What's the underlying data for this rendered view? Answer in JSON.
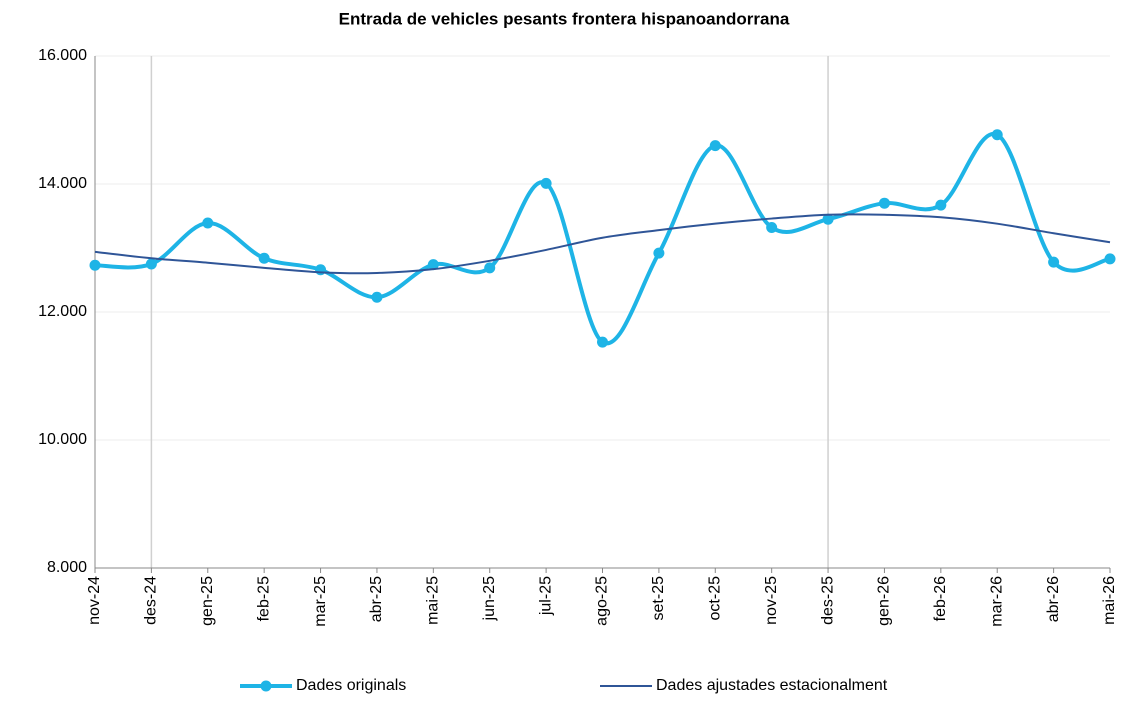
{
  "chart_data": {
    "type": "line",
    "title": "Entrada de vehicles pesants frontera hispanoandorrana",
    "categories": [
      "nov-24",
      "des-24",
      "gen-25",
      "feb-25",
      "mar-25",
      "abr-25",
      "mai-25",
      "jun-25",
      "jul-25",
      "ago-25",
      "set-25",
      "oct-25",
      "nov-25",
      "des-25",
      "gen-26",
      "feb-26",
      "mar-26",
      "abr-26",
      "mai-26"
    ],
    "series": [
      {
        "name": "Dades originals",
        "color": "#1eb4e6",
        "marker": true,
        "values": [
          12730,
          12750,
          13390,
          12840,
          12660,
          12230,
          12740,
          12690,
          14010,
          11530,
          12920,
          14600,
          13320,
          13450,
          13700,
          13670,
          14770,
          12780,
          12830
        ]
      },
      {
        "name": "Dades ajustades estacionalment",
        "color": "#2f5597",
        "marker": false,
        "values": [
          12940,
          12840,
          12770,
          12690,
          12620,
          12610,
          12670,
          12800,
          12970,
          13160,
          13280,
          13380,
          13460,
          13520,
          13520,
          13480,
          13380,
          13230,
          13090
        ]
      }
    ],
    "ylim": [
      8000,
      16000
    ],
    "yticks": [
      {
        "value": 8000,
        "label": "8.000"
      },
      {
        "value": 10000,
        "label": "10.000"
      },
      {
        "value": 12000,
        "label": "12.000"
      },
      {
        "value": 14000,
        "label": "14.000"
      },
      {
        "value": 16000,
        "label": "16.000"
      }
    ],
    "grid": true,
    "legend": "bottom"
  }
}
